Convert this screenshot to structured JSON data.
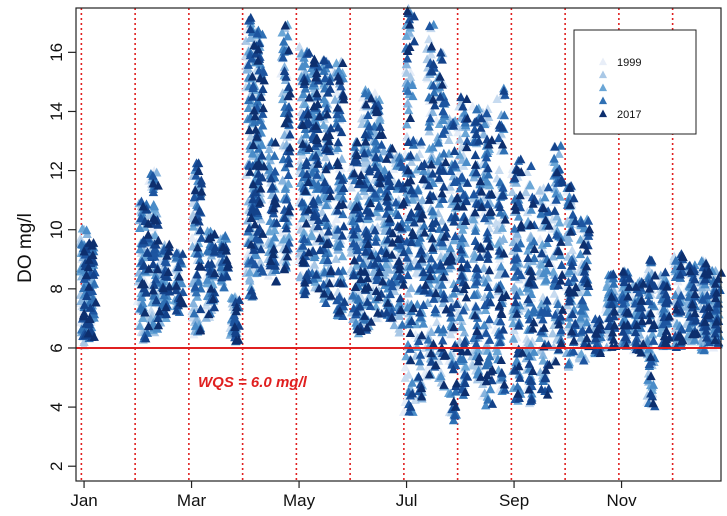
{
  "chart_data": {
    "type": "scatter",
    "title": "",
    "xlabel": "",
    "ylabel": "DO mg/l",
    "marker": "triangle",
    "x_tick_labels": [
      "Jan",
      "Mar",
      "May",
      "Jul",
      "Sep",
      "Nov"
    ],
    "x_tick_months": [
      1,
      3,
      5,
      7,
      9,
      11
    ],
    "y_ticks": [
      2,
      4,
      6,
      8,
      10,
      12,
      14,
      16
    ],
    "xlim": [
      0.85,
      12.85
    ],
    "ylim": [
      1.5,
      17.5
    ],
    "month_grid_lines": [
      1,
      2,
      3,
      4,
      5,
      6,
      7,
      8,
      9,
      10,
      11,
      12
    ],
    "grid_line_color": "#e02020",
    "reference_line": {
      "y": 6.0,
      "label": "WQS = 6.0 mg/l",
      "color": "#e02020"
    },
    "legend": {
      "position": "top-right",
      "entries": [
        {
          "label": "1999",
          "color": "#e8eef8"
        },
        {
          "label": "",
          "color": "#a9c8e6"
        },
        {
          "label": "",
          "color": "#6aa6d6"
        },
        {
          "label": "",
          "color": "#2f70b4"
        },
        {
          "label": "2017",
          "color": "#0d2f6e"
        }
      ]
    },
    "year_colors": [
      "#e6edf8",
      "#c7dbf0",
      "#a9c8e6",
      "#87b4de",
      "#6aa6d6",
      "#4a8cc8",
      "#2f70b4",
      "#1d55a0",
      "#13428a",
      "#0d2f6e"
    ],
    "sample_groups": [
      {
        "month": 1.0,
        "min": 6.0,
        "max": 10.1,
        "density": 1.0
      },
      {
        "month": 1.12,
        "min": 6.3,
        "max": 9.6,
        "density": 0.9
      },
      {
        "month": 2.1,
        "min": 6.2,
        "max": 11.0,
        "density": 1.0
      },
      {
        "month": 2.3,
        "min": 6.5,
        "max": 12.0,
        "density": 1.0
      },
      {
        "month": 2.5,
        "min": 6.8,
        "max": 9.5,
        "density": 0.8
      },
      {
        "month": 2.75,
        "min": 7.2,
        "max": 9.3,
        "density": 0.6
      },
      {
        "month": 3.1,
        "min": 6.4,
        "max": 12.5,
        "density": 1.0
      },
      {
        "month": 3.35,
        "min": 7.0,
        "max": 10.0,
        "density": 0.8
      },
      {
        "month": 3.6,
        "min": 8.0,
        "max": 9.8,
        "density": 0.6
      },
      {
        "month": 3.8,
        "min": 6.2,
        "max": 7.8,
        "density": 0.5
      },
      {
        "month": 4.1,
        "min": 7.5,
        "max": 17.2,
        "density": 1.4
      },
      {
        "month": 4.25,
        "min": 8.5,
        "max": 16.8,
        "density": 1.4
      },
      {
        "month": 4.5,
        "min": 8.2,
        "max": 13.0,
        "density": 0.9
      },
      {
        "month": 4.75,
        "min": 8.6,
        "max": 17.0,
        "density": 1.2
      },
      {
        "month": 5.1,
        "min": 7.8,
        "max": 16.3,
        "density": 1.5
      },
      {
        "month": 5.3,
        "min": 8.0,
        "max": 15.8,
        "density": 1.5
      },
      {
        "month": 5.5,
        "min": 7.5,
        "max": 16.0,
        "density": 1.4
      },
      {
        "month": 5.75,
        "min": 7.0,
        "max": 15.7,
        "density": 1.3
      },
      {
        "month": 6.05,
        "min": 6.4,
        "max": 13.0,
        "density": 1.3
      },
      {
        "month": 6.25,
        "min": 6.6,
        "max": 15.0,
        "density": 1.4
      },
      {
        "month": 6.45,
        "min": 6.9,
        "max": 14.7,
        "density": 1.3
      },
      {
        "month": 6.65,
        "min": 7.0,
        "max": 12.8,
        "density": 1.1
      },
      {
        "month": 6.85,
        "min": 6.5,
        "max": 12.5,
        "density": 1.0
      },
      {
        "month": 7.05,
        "min": 3.8,
        "max": 17.5,
        "density": 1.4
      },
      {
        "month": 7.25,
        "min": 4.2,
        "max": 13.0,
        "density": 1.1
      },
      {
        "month": 7.45,
        "min": 5.0,
        "max": 17.0,
        "density": 1.3
      },
      {
        "month": 7.65,
        "min": 4.5,
        "max": 16.0,
        "density": 1.3
      },
      {
        "month": 7.85,
        "min": 3.5,
        "max": 14.0,
        "density": 1.2
      },
      {
        "month": 8.05,
        "min": 4.3,
        "max": 14.5,
        "density": 1.3
      },
      {
        "month": 8.3,
        "min": 4.8,
        "max": 14.2,
        "density": 1.3
      },
      {
        "month": 8.5,
        "min": 4.0,
        "max": 14.3,
        "density": 1.2
      },
      {
        "month": 8.75,
        "min": 4.5,
        "max": 14.8,
        "density": 1.2
      },
      {
        "month": 9.05,
        "min": 4.2,
        "max": 12.5,
        "density": 1.2
      },
      {
        "month": 9.3,
        "min": 4.1,
        "max": 12.3,
        "density": 1.1
      },
      {
        "month": 9.55,
        "min": 4.3,
        "max": 11.5,
        "density": 1.0
      },
      {
        "month": 9.8,
        "min": 5.5,
        "max": 13.0,
        "density": 1.0
      },
      {
        "month": 10.05,
        "min": 5.3,
        "max": 11.5,
        "density": 1.0
      },
      {
        "month": 10.3,
        "min": 5.5,
        "max": 10.5,
        "density": 0.9
      },
      {
        "month": 10.55,
        "min": 5.8,
        "max": 7.0,
        "density": 0.6
      },
      {
        "month": 10.8,
        "min": 6.0,
        "max": 8.5,
        "density": 0.8
      },
      {
        "month": 11.05,
        "min": 6.0,
        "max": 8.6,
        "density": 0.9
      },
      {
        "month": 11.3,
        "min": 5.8,
        "max": 8.3,
        "density": 0.9
      },
      {
        "month": 11.55,
        "min": 4.0,
        "max": 9.0,
        "density": 0.9
      },
      {
        "month": 11.8,
        "min": 6.0,
        "max": 8.6,
        "density": 0.9
      },
      {
        "month": 12.05,
        "min": 6.0,
        "max": 9.2,
        "density": 0.9
      },
      {
        "month": 12.3,
        "min": 6.2,
        "max": 8.8,
        "density": 0.9
      },
      {
        "month": 12.55,
        "min": 5.9,
        "max": 9.0,
        "density": 0.9
      },
      {
        "month": 12.75,
        "min": 6.0,
        "max": 8.7,
        "density": 0.8
      }
    ]
  }
}
